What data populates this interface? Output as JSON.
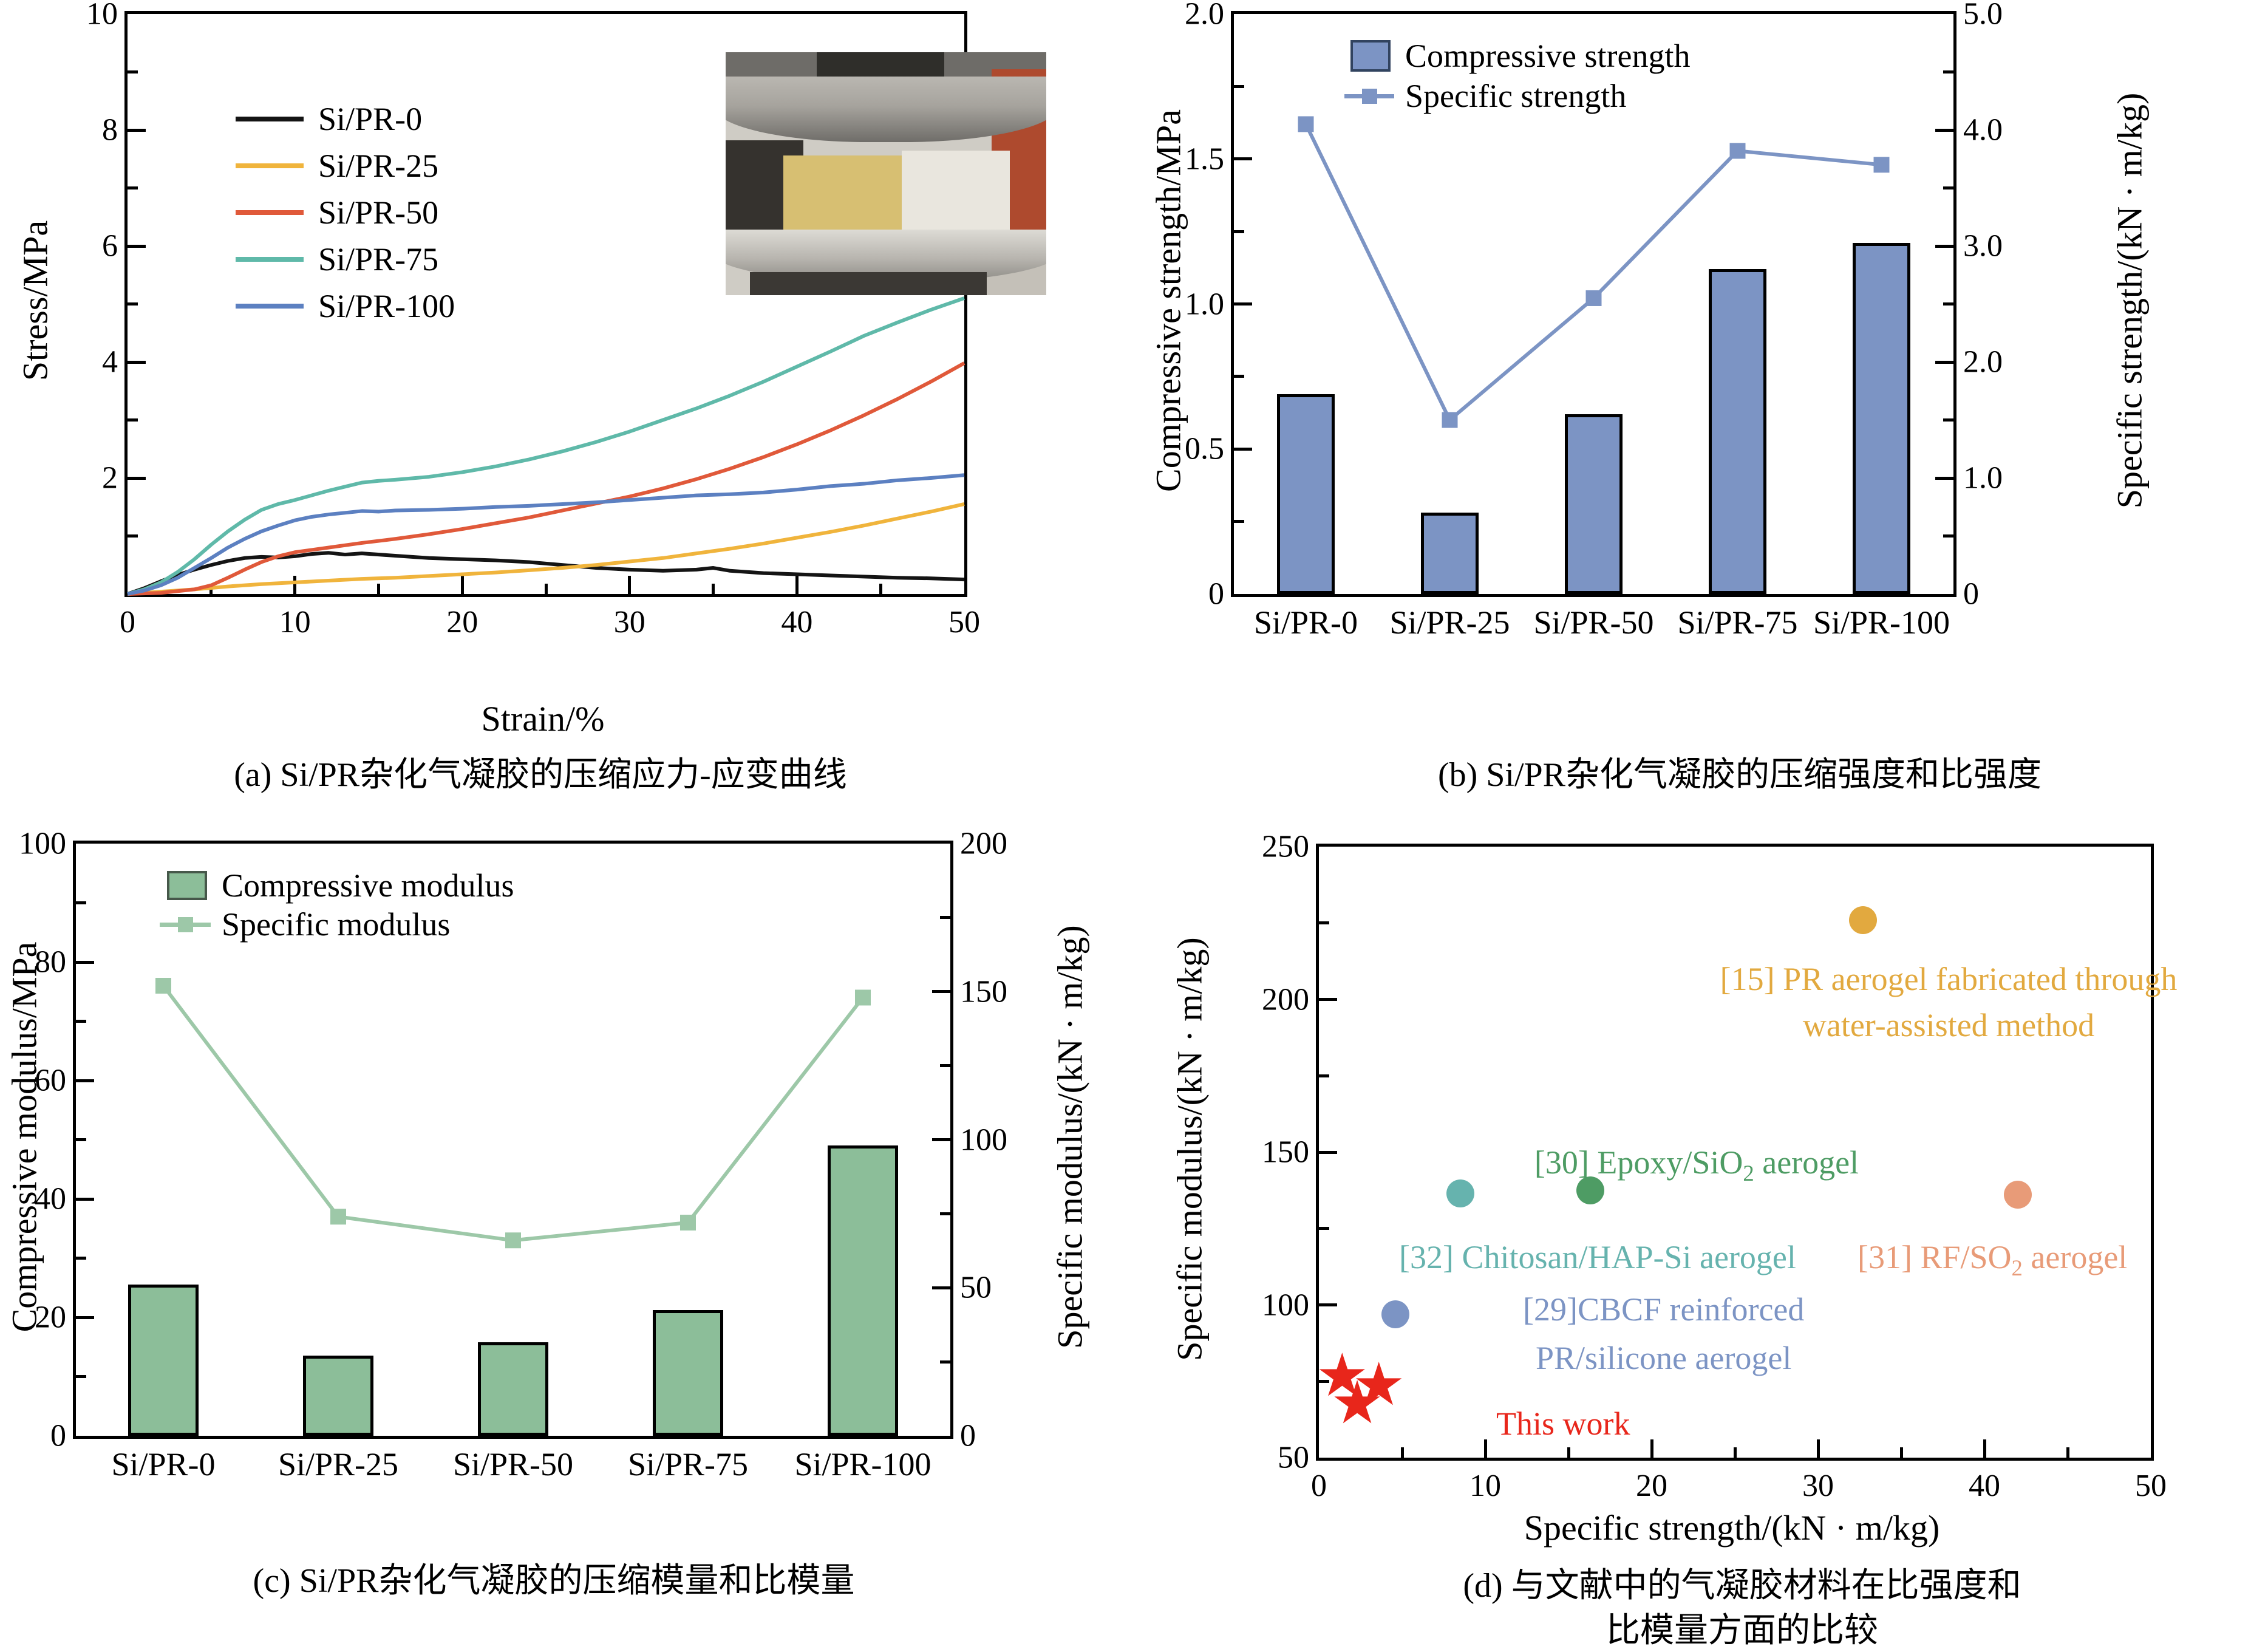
{
  "figure": {
    "background": "#ffffff"
  },
  "chart_data": [
    {
      "id": "a",
      "type": "line",
      "caption": "(a) Si/PR杂化气凝胶的压缩应力-应变曲线",
      "xlabel": "Strain/%",
      "ylabel": "Stress/MPa",
      "xlim": [
        0,
        50
      ],
      "ylim": [
        0,
        10
      ],
      "xtick_labels": [
        "0",
        "10",
        "20",
        "30",
        "40",
        "50"
      ],
      "ytick_labels": [
        "2",
        "4",
        "6",
        "8",
        "10"
      ],
      "series": [
        {
          "name": "Si/PR-0",
          "color": "#141414",
          "x": [
            0,
            1,
            2,
            3,
            4,
            5,
            6,
            7,
            8,
            9,
            10,
            11,
            12,
            13,
            14,
            16,
            18,
            20,
            22,
            24,
            26,
            28,
            30,
            32,
            34,
            35,
            36,
            38,
            40,
            42,
            44,
            46,
            48,
            50
          ],
          "y": [
            0,
            0.1,
            0.22,
            0.33,
            0.42,
            0.5,
            0.57,
            0.62,
            0.64,
            0.63,
            0.65,
            0.69,
            0.71,
            0.68,
            0.7,
            0.66,
            0.62,
            0.6,
            0.58,
            0.55,
            0.5,
            0.45,
            0.42,
            0.4,
            0.42,
            0.45,
            0.4,
            0.36,
            0.34,
            0.32,
            0.3,
            0.28,
            0.27,
            0.25
          ]
        },
        {
          "name": "Si/PR-25",
          "color": "#F0B43C",
          "x": [
            0,
            2,
            4,
            6,
            8,
            10,
            12,
            14,
            16,
            18,
            20,
            22,
            24,
            26,
            28,
            30,
            32,
            34,
            36,
            38,
            40,
            42,
            44,
            46,
            48,
            50
          ],
          "y": [
            0,
            0.04,
            0.08,
            0.13,
            0.17,
            0.2,
            0.23,
            0.26,
            0.28,
            0.31,
            0.34,
            0.37,
            0.41,
            0.45,
            0.5,
            0.56,
            0.62,
            0.7,
            0.78,
            0.87,
            0.97,
            1.07,
            1.18,
            1.3,
            1.42,
            1.55
          ]
        },
        {
          "name": "Si/PR-50",
          "color": "#E0593A",
          "x": [
            0,
            2,
            4,
            5,
            6,
            7,
            8,
            9,
            10,
            11,
            12,
            14,
            16,
            18,
            20,
            22,
            24,
            26,
            28,
            30,
            32,
            34,
            36,
            38,
            40,
            42,
            44,
            46,
            48,
            50
          ],
          "y": [
            0,
            0.02,
            0.08,
            0.15,
            0.28,
            0.42,
            0.55,
            0.65,
            0.72,
            0.76,
            0.8,
            0.88,
            0.95,
            1.03,
            1.12,
            1.22,
            1.32,
            1.44,
            1.56,
            1.68,
            1.82,
            1.98,
            2.16,
            2.36,
            2.58,
            2.82,
            3.08,
            3.36,
            3.66,
            3.98
          ]
        },
        {
          "name": "Si/PR-75",
          "color": "#5FB9A9",
          "x": [
            0,
            1,
            2,
            3,
            4,
            5,
            6,
            7,
            8,
            9,
            10,
            11,
            12,
            13,
            14,
            15,
            16,
            18,
            20,
            22,
            24,
            26,
            28,
            30,
            32,
            34,
            36,
            38,
            40,
            42,
            44,
            46,
            48,
            50
          ],
          "y": [
            0,
            0.08,
            0.2,
            0.38,
            0.6,
            0.85,
            1.08,
            1.28,
            1.45,
            1.55,
            1.62,
            1.7,
            1.78,
            1.85,
            1.92,
            1.95,
            1.97,
            2.02,
            2.1,
            2.2,
            2.32,
            2.46,
            2.62,
            2.8,
            3.0,
            3.2,
            3.42,
            3.66,
            3.92,
            4.18,
            4.45,
            4.68,
            4.9,
            5.1
          ]
        },
        {
          "name": "Si/PR-100",
          "color": "#5C80C1",
          "x": [
            0,
            1,
            2,
            3,
            4,
            5,
            6,
            7,
            8,
            9,
            10,
            11,
            12,
            13,
            14,
            15,
            16,
            18,
            20,
            22,
            24,
            26,
            28,
            30,
            32,
            34,
            36,
            38,
            40,
            42,
            44,
            46,
            48,
            50
          ],
          "y": [
            0,
            0.06,
            0.15,
            0.28,
            0.45,
            0.62,
            0.8,
            0.95,
            1.08,
            1.18,
            1.27,
            1.33,
            1.37,
            1.4,
            1.43,
            1.42,
            1.44,
            1.45,
            1.47,
            1.5,
            1.52,
            1.55,
            1.58,
            1.62,
            1.66,
            1.7,
            1.72,
            1.75,
            1.8,
            1.86,
            1.9,
            1.96,
            2.0,
            2.05
          ]
        }
      ]
    },
    {
      "id": "b",
      "type": "bar+line",
      "caption": "(b) Si/PR杂化气凝胶的压缩强度和比强度",
      "categories": [
        "Si/PR-0",
        "Si/PR-25",
        "Si/PR-50",
        "Si/PR-75",
        "Si/PR-100"
      ],
      "bar_series": {
        "name": "Compressive strength",
        "axis": "left",
        "color": "#7C94C4",
        "values": [
          0.69,
          0.28,
          0.62,
          1.12,
          1.21
        ]
      },
      "line_series": {
        "name": "Specific strength",
        "axis": "right",
        "color": "#7C94C4",
        "values": [
          4.05,
          1.5,
          2.55,
          3.82,
          3.7
        ]
      },
      "left_axis": {
        "label": "Compressive strength/MPa",
        "lim": [
          0,
          2
        ],
        "tick_labels": [
          "0",
          "0.5",
          "1.0",
          "1.5",
          "2.0"
        ]
      },
      "right_axis": {
        "label": "Specific strength/(kN · m/kg)",
        "lim": [
          0,
          5
        ],
        "tick_labels": [
          "0",
          "1.0",
          "2.0",
          "3.0",
          "4.0",
          "5.0"
        ]
      }
    },
    {
      "id": "c",
      "type": "bar+line",
      "caption": "(c) Si/PR杂化气凝胶的压缩模量和比模量",
      "categories": [
        "Si/PR-0",
        "Si/PR-25",
        "Si/PR-50",
        "Si/PR-75",
        "Si/PR-100"
      ],
      "bar_series": {
        "name": "Compressive modulus",
        "axis": "left",
        "color": "#8CBE99",
        "values": [
          25.5,
          13.5,
          15.8,
          21.2,
          49
        ]
      },
      "line_series": {
        "name": "Specific modulus",
        "axis": "right",
        "color": "#9DC8A8",
        "values": [
          152,
          74,
          66,
          72,
          148
        ]
      },
      "left_axis": {
        "label": "Compressive modulus/MPa",
        "lim": [
          0,
          100
        ],
        "tick_labels": [
          "0",
          "20",
          "40",
          "60",
          "80",
          "100"
        ]
      },
      "right_axis": {
        "label": "Specific modulus/(kN · m/kg)",
        "lim": [
          0,
          200
        ],
        "tick_labels": [
          "0",
          "50",
          "100",
          "150",
          "200"
        ]
      }
    },
    {
      "id": "d",
      "type": "scatter",
      "caption_line1": "(d) 与文献中的气凝胶材料在比强度和",
      "caption_line2": "比模量方面的比较",
      "xlabel": "Specific strength/(kN · m/kg)",
      "ylabel": "Specific modulus/(kN · m/kg)",
      "xlim": [
        0,
        50
      ],
      "ylim": [
        50,
        250
      ],
      "xtick_labels": [
        "0",
        "10",
        "20",
        "30",
        "40",
        "50"
      ],
      "ytick_labels": [
        "50",
        "100",
        "150",
        "200",
        "250"
      ],
      "points": [
        {
          "ref": "[15]",
          "x": 32.7,
          "y": 226,
          "color": "#E2A93F"
        },
        {
          "ref": "[30]",
          "x": 16.3,
          "y": 137.5,
          "color": "#4E9C64"
        },
        {
          "ref": "[32]",
          "x": 8.5,
          "y": 136.5,
          "color": "#66B3AE"
        },
        {
          "ref": "[31]",
          "x": 42,
          "y": 136,
          "color": "#E89B78"
        },
        {
          "ref": "[29]",
          "x": 4.6,
          "y": 97,
          "color": "#7C94C4"
        }
      ],
      "this_work": {
        "label": "This work",
        "color": "#E8261B",
        "points": [
          [
            1.4,
            76
          ],
          [
            2.3,
            67
          ],
          [
            3.6,
            73
          ]
        ]
      },
      "annotations": {
        "a15": {
          "color": "#E2A93F",
          "line1": "[15] PR aerogel fabricated through",
          "line2": "water-assisted method"
        },
        "a30": {
          "color": "#4E9C64",
          "pre": "[30] Epoxy/SiO",
          "sub": "2",
          "post": " aerogel"
        },
        "a32": {
          "color": "#66B3AE",
          "text": "[32] Chitosan/HAP-Si aerogel"
        },
        "a31": {
          "color": "#E89B78",
          "pre": "[31] RF/SO",
          "sub": "2",
          "post": " aerogel"
        },
        "a29": {
          "color": "#7C94C4",
          "line1": "[29]CBCF reinforced",
          "line2": "PR/silicone aerogel"
        }
      }
    }
  ]
}
